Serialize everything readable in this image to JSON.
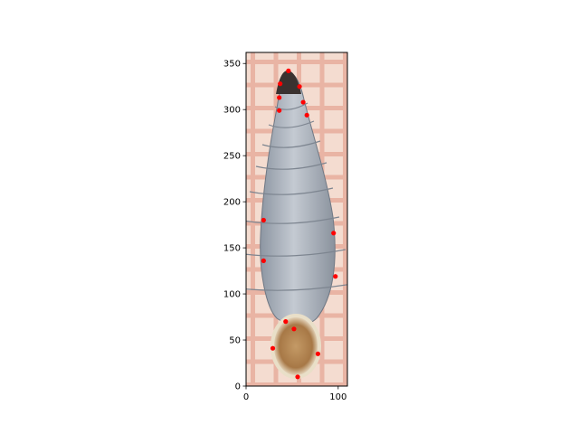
{
  "chart_data": {
    "type": "scatter",
    "title": "",
    "xlabel": "",
    "ylabel": "",
    "xlim": [
      0,
      110
    ],
    "ylim": [
      0,
      362
    ],
    "x_ticks": [
      0,
      100
    ],
    "x_tick_labels": [
      "0",
      "100"
    ],
    "y_ticks": [
      0,
      50,
      100,
      150,
      200,
      250,
      300,
      350
    ],
    "y_tick_labels": [
      "0",
      "50",
      "100",
      "150",
      "200",
      "250",
      "300",
      "350"
    ],
    "grid": false,
    "legend": "none",
    "background_image": "snail-shell-photo-on-grid-paper",
    "series": [
      {
        "marker_color": "#ff0000",
        "x": [
          46,
          37,
          58,
          36,
          62,
          36,
          66,
          19,
          95,
          19,
          97,
          43,
          52,
          29,
          78,
          56
        ],
        "y": [
          342,
          328,
          325,
          313,
          308,
          299,
          294,
          180,
          166,
          136,
          119,
          70,
          62,
          41,
          35,
          10
        ]
      }
    ]
  }
}
